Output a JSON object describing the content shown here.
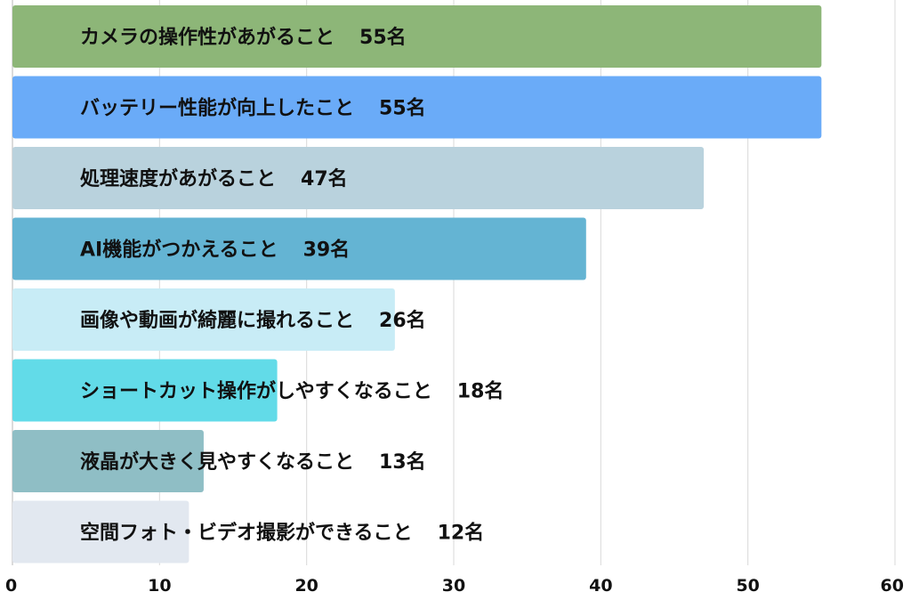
{
  "chart_data": {
    "type": "bar",
    "orientation": "horizontal",
    "unit": "名",
    "categories": [
      "カメラの操作性があがること",
      "バッテリー性能が向上したこと",
      "処理速度があがること",
      "AI機能がつかえること",
      "画像や動画が綺麗に撮れること",
      "ショートカット操作がしやすくなること",
      "液晶が大きく見やすくなること",
      "空間フォト・ビデオ撮影ができること"
    ],
    "values": [
      55,
      55,
      47,
      39,
      26,
      18,
      13,
      12
    ],
    "colors": [
      "#8db678",
      "#6aabf8",
      "#b9d2dd",
      "#64b4d3",
      "#c8ecf6",
      "#62dbe8",
      "#8fbec5",
      "#e2e8f0"
    ],
    "x_ticks": [
      0,
      10,
      20,
      30,
      40,
      50,
      60
    ],
    "xlim": [
      0,
      60
    ],
    "grid": true,
    "legend": "none"
  }
}
